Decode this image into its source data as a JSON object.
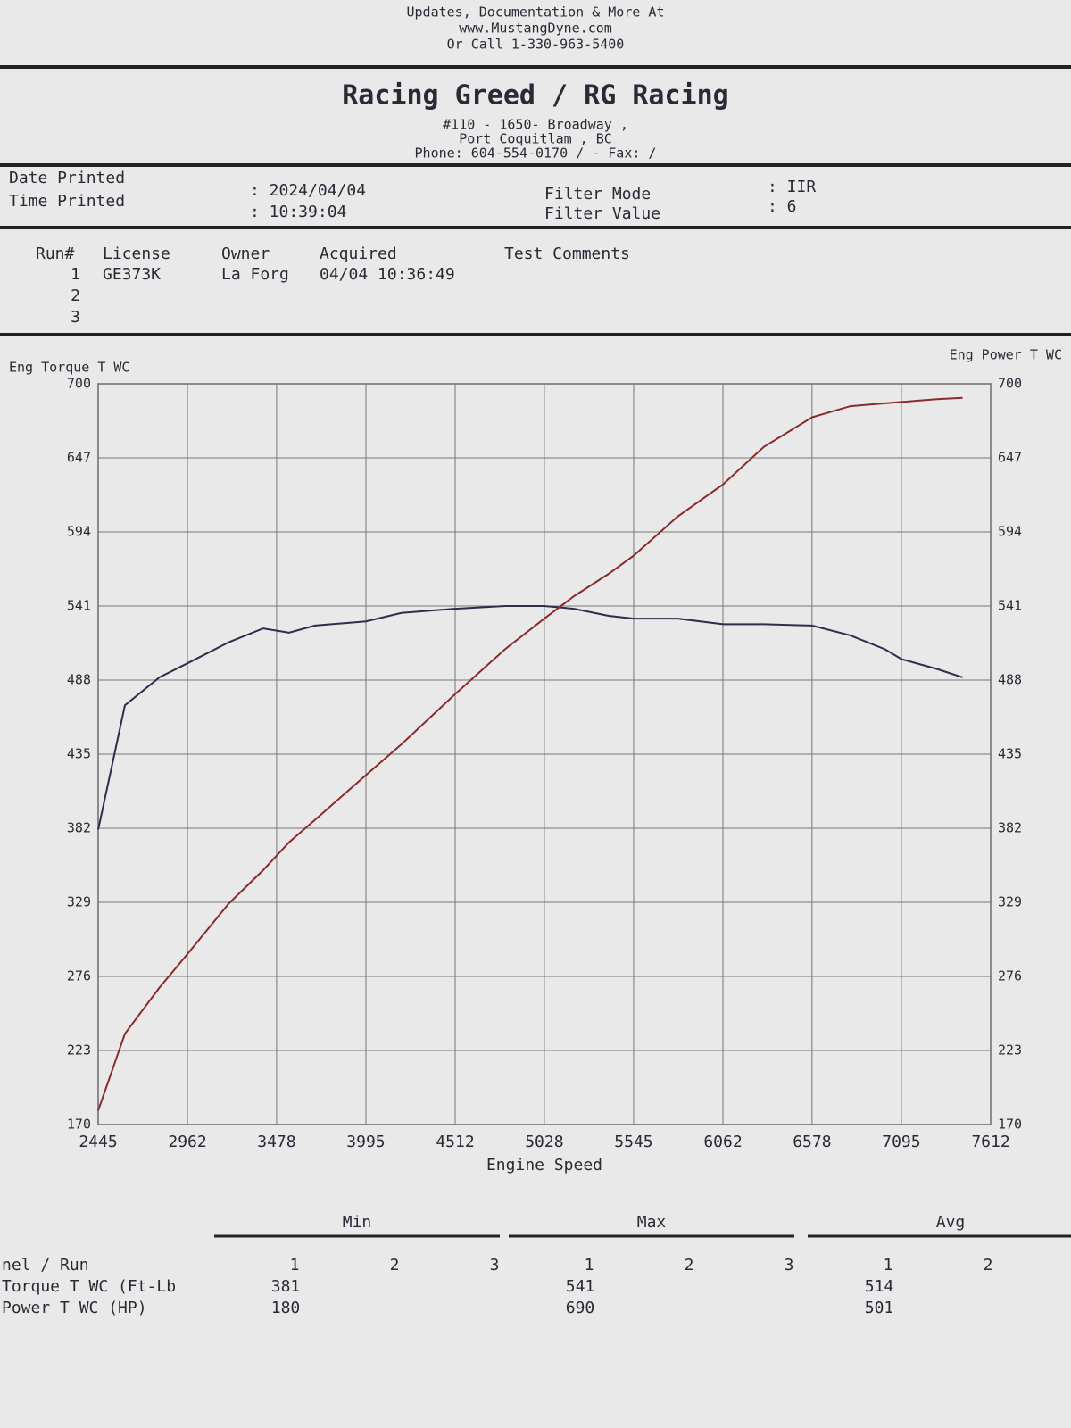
{
  "header": {
    "lines": [
      "Updates, Documentation & More At",
      "www.MustangDyne.com",
      "Or Call 1-330-963-5400"
    ],
    "shop": "Racing Greed / RG Racing",
    "address": [
      "#110 - 1650- Broadway ,",
      "Port Coquitlam , BC",
      "Phone: 604-554-0170 /  - Fax:  /"
    ]
  },
  "info": {
    "labels": [
      "Date Printed",
      "Time Printed"
    ],
    "values": [
      ": 2024/04/04",
      ": 10:39:04"
    ],
    "filter_labels": [
      "Filter Mode",
      "Filter Value"
    ],
    "filter_values": [
      ": IIR",
      ": 6"
    ]
  },
  "runs": {
    "columns": [
      "Run#",
      "License",
      "Owner",
      "Acquired",
      "Test Comments"
    ],
    "rows": [
      [
        "1",
        "GE373K",
        "La Forg",
        "04/04 10:36:49"
      ],
      [
        "2"
      ],
      [
        "3"
      ]
    ]
  },
  "chart_data": {
    "type": "line",
    "ylabel": "Eng Torque T WC",
    "y2label": "Eng Power T WC",
    "xlabel": "Engine Speed",
    "x": [
      2445,
      2600,
      2800,
      2962,
      3200,
      3400,
      3550,
      3700,
      3995,
      4200,
      4512,
      4800,
      5028,
      5200,
      5400,
      5545,
      5800,
      6062,
      6300,
      6578,
      6800,
      7000,
      7095,
      7300,
      7450
    ],
    "series": [
      {
        "name": "Eng Torque T WC",
        "color": "#2b2f4a",
        "axis": "y",
        "values": [
          381,
          470,
          490,
          500,
          515,
          525,
          522,
          527,
          530,
          536,
          539,
          541,
          541,
          539,
          534,
          532,
          532,
          528,
          528,
          527,
          520,
          510,
          503,
          496,
          490
        ]
      },
      {
        "name": "Eng Power T WC",
        "color": "#8b2a2a",
        "axis": "y2",
        "values": [
          180,
          235,
          268,
          292,
          328,
          352,
          372,
          388,
          420,
          442,
          478,
          510,
          532,
          548,
          564,
          577,
          605,
          628,
          655,
          676,
          684,
          686,
          687,
          689,
          690
        ]
      }
    ],
    "xlim": [
      2445,
      7612
    ],
    "xticks": [
      2445,
      2962,
      3478,
      3995,
      4512,
      5028,
      5545,
      6062,
      6578,
      7095,
      7612
    ],
    "ylim": [
      170,
      700
    ],
    "yticks": [
      170,
      223,
      276,
      329,
      382,
      435,
      488,
      541,
      594,
      647,
      700
    ],
    "y2lim": [
      170,
      700
    ],
    "y2ticks": [
      170,
      223,
      276,
      329,
      382,
      435,
      488,
      541,
      594,
      647,
      700
    ],
    "grid": true
  },
  "stats": {
    "groups": [
      "Min",
      "Max",
      "Avg"
    ],
    "header": "nel / Run",
    "runs": [
      [
        "1",
        "2",
        "3"
      ],
      [
        "1",
        "2",
        "3"
      ],
      [
        "1",
        "2"
      ]
    ],
    "rows": [
      {
        "label": "Torque T WC (Ft-Lb",
        "values": [
          381,
          541,
          514
        ]
      },
      {
        "label": "Power T WC (HP)",
        "values": [
          180,
          690,
          501
        ]
      }
    ]
  }
}
